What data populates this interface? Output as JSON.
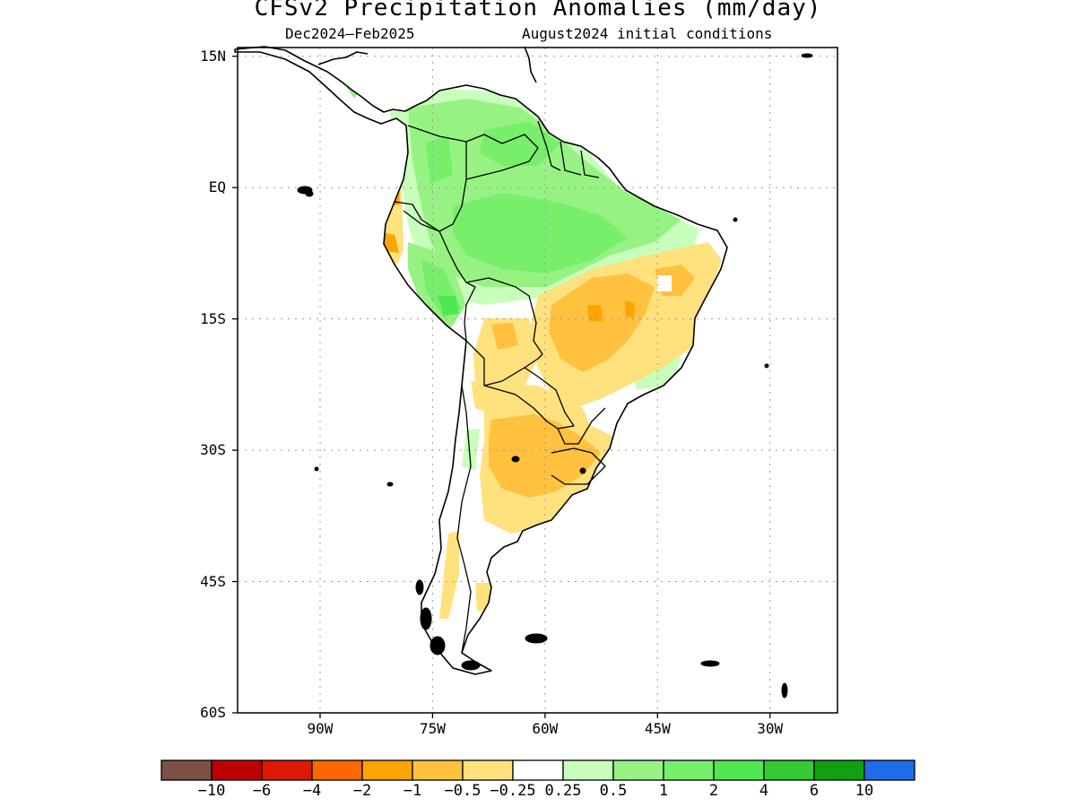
{
  "title": "CFSv2 Precipitation Anomalies (mm/day)",
  "subtitle_left": "Dec2024–Feb2025",
  "subtitle_right": "August2024 initial conditions",
  "map": {
    "lon_range": [
      -101,
      -21
    ],
    "lat_range": [
      -60,
      16
    ],
    "lat_ticks": [
      {
        "value": 15,
        "label": "15N"
      },
      {
        "value": 0,
        "label": "EQ"
      },
      {
        "value": -15,
        "label": "15S"
      },
      {
        "value": -30,
        "label": "30S"
      },
      {
        "value": -45,
        "label": "45S"
      },
      {
        "value": -60,
        "label": "60S"
      }
    ],
    "lon_ticks": [
      {
        "value": -90,
        "label": "90W"
      },
      {
        "value": -75,
        "label": "75W"
      },
      {
        "value": -60,
        "label": "60W"
      },
      {
        "value": -45,
        "label": "45W"
      },
      {
        "value": -30,
        "label": "30W"
      }
    ]
  },
  "colorbar": {
    "colors": [
      "#7b5045",
      "#bd0000",
      "#dd1900",
      "#fb6700",
      "#ffa400",
      "#ffc13e",
      "#ffe17d",
      "#ffffff",
      "#c8ffbc",
      "#96f383",
      "#78ef6a",
      "#50e852",
      "#35c934",
      "#10a012",
      "#1e6ceb"
    ],
    "labels": [
      "−10",
      "−6",
      "−4",
      "−2",
      "−1",
      "−0.5",
      "−0.25",
      "0.25",
      "0.5",
      "1",
      "2",
      "4",
      "6",
      "10"
    ]
  },
  "colors": {
    "dry_light": "#ffe17d",
    "dry_mid": "#ffc13e",
    "dry_strong": "#ffa400",
    "wet_light": "#c8ffbc",
    "wet_mid": "#96f383",
    "wet_strong": "#78ef6a",
    "wet_vstrong": "#50e852"
  }
}
